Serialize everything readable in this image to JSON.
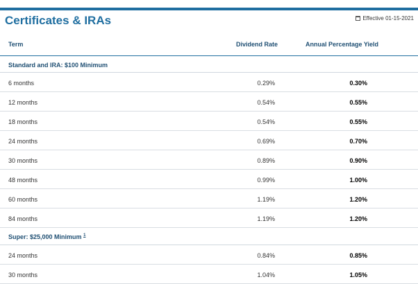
{
  "title": "Certificates & IRAs",
  "effective": "Effective 01-15-2021",
  "columns": {
    "term": "Term",
    "rate": "Dividend Rate",
    "apy": "Annual Percentage Yield"
  },
  "section1": {
    "label": "Standard and IRA: $100 Minimum"
  },
  "rows1": [
    {
      "term": "6 months",
      "rate": "0.29%",
      "apy": "0.30%"
    },
    {
      "term": "12 months",
      "rate": "0.54%",
      "apy": "0.55%"
    },
    {
      "term": "18 months",
      "rate": "0.54%",
      "apy": "0.55%"
    },
    {
      "term": "24 months",
      "rate": "0.69%",
      "apy": "0.70%"
    },
    {
      "term": "30 months",
      "rate": "0.89%",
      "apy": "0.90%"
    },
    {
      "term": "48 months",
      "rate": "0.99%",
      "apy": "1.00%"
    },
    {
      "term": "60 months",
      "rate": "1.19%",
      "apy": "1.20%"
    },
    {
      "term": "84 months",
      "rate": "1.19%",
      "apy": "1.20%"
    }
  ],
  "section2": {
    "label": "Super: $25,000 Minimum",
    "footnote": "1"
  },
  "rows2": [
    {
      "term": "24 months",
      "rate": "0.84%",
      "apy": "0.85%"
    },
    {
      "term": "30 months",
      "rate": "1.04%",
      "apy": "1.05%"
    }
  ]
}
